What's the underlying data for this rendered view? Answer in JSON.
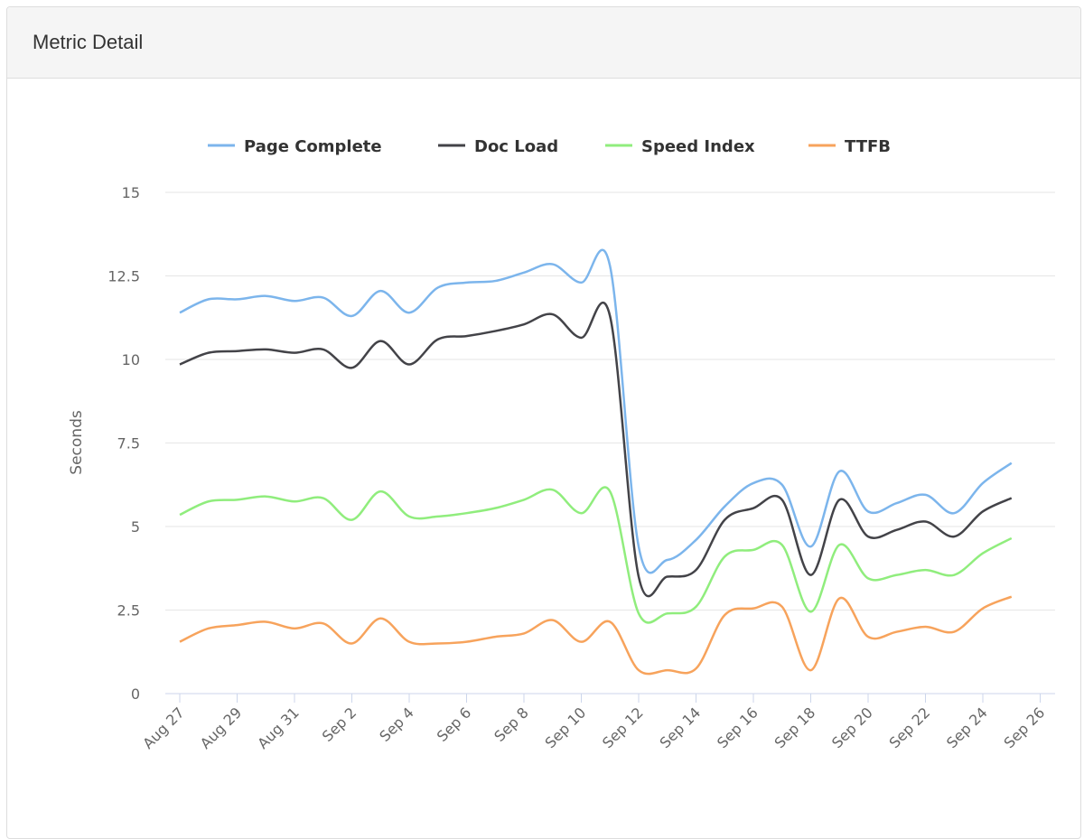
{
  "panel": {
    "title": "Metric Detail"
  },
  "chart_data": {
    "type": "line",
    "title": "",
    "xlabel": "",
    "ylabel": "Seconds",
    "ylim": [
      0,
      15
    ],
    "yticks": [
      "0",
      "2.5",
      "5",
      "7.5",
      "10",
      "12.5",
      "15"
    ],
    "ytick_values": [
      0,
      2.5,
      5,
      7.5,
      10,
      12.5,
      15
    ],
    "xtick_labels": [
      "Aug 27",
      "Aug 29",
      "Aug 31",
      "Sep 2",
      "Sep 4",
      "Sep 6",
      "Sep 8",
      "Sep 10",
      "Sep 12",
      "Sep 14",
      "Sep 16",
      "Sep 18",
      "Sep 20",
      "Sep 22",
      "Sep 24",
      "Sep 26"
    ],
    "x_range_days": [
      0,
      30
    ],
    "x": [
      "Aug 27",
      "Aug 28",
      "Aug 29",
      "Aug 30",
      "Aug 31",
      "Sep 1",
      "Sep 2",
      "Sep 3",
      "Sep 4",
      "Sep 5",
      "Sep 6",
      "Sep 7",
      "Sep 8",
      "Sep 9",
      "Sep 10",
      "Sep 11",
      "Sep 12",
      "Sep 13",
      "Sep 14",
      "Sep 15",
      "Sep 16",
      "Sep 17",
      "Sep 18",
      "Sep 19",
      "Sep 20",
      "Sep 21",
      "Sep 22",
      "Sep 23",
      "Sep 24",
      "Sep 25"
    ],
    "grid": true,
    "legend_position": "top",
    "series": [
      {
        "name": "Page Complete",
        "color": "#7cb5ec",
        "values": [
          11.4,
          11.8,
          11.8,
          11.9,
          11.75,
          11.85,
          11.3,
          12.05,
          11.4,
          12.15,
          12.3,
          12.35,
          12.6,
          12.85,
          12.3,
          12.8,
          4.4,
          4.0,
          4.6,
          5.6,
          6.3,
          6.25,
          4.4,
          6.65,
          5.45,
          5.7,
          5.95,
          5.4,
          6.3,
          6.9
        ]
      },
      {
        "name": "Doc Load",
        "color": "#434348",
        "values": [
          9.85,
          10.2,
          10.25,
          10.3,
          10.2,
          10.3,
          9.75,
          10.55,
          9.85,
          10.6,
          10.7,
          10.85,
          11.05,
          11.35,
          10.65,
          11.3,
          3.5,
          3.5,
          3.7,
          5.2,
          5.55,
          5.8,
          3.55,
          5.8,
          4.7,
          4.9,
          5.15,
          4.7,
          5.45,
          5.85
        ]
      },
      {
        "name": "Speed Index",
        "color": "#90ed7d",
        "values": [
          5.35,
          5.75,
          5.8,
          5.9,
          5.75,
          5.85,
          5.2,
          6.05,
          5.3,
          5.3,
          5.4,
          5.55,
          5.8,
          6.1,
          5.4,
          6.05,
          2.4,
          2.4,
          2.6,
          4.1,
          4.3,
          4.45,
          2.45,
          4.45,
          3.45,
          3.55,
          3.7,
          3.55,
          4.2,
          4.65
        ]
      },
      {
        "name": "TTFB",
        "color": "#f7a35c",
        "values": [
          1.55,
          1.95,
          2.05,
          2.15,
          1.95,
          2.1,
          1.5,
          2.25,
          1.55,
          1.5,
          1.55,
          1.7,
          1.8,
          2.2,
          1.55,
          2.15,
          0.7,
          0.7,
          0.75,
          2.35,
          2.55,
          2.6,
          0.7,
          2.85,
          1.7,
          1.85,
          2.0,
          1.85,
          2.55,
          2.9
        ]
      }
    ]
  }
}
